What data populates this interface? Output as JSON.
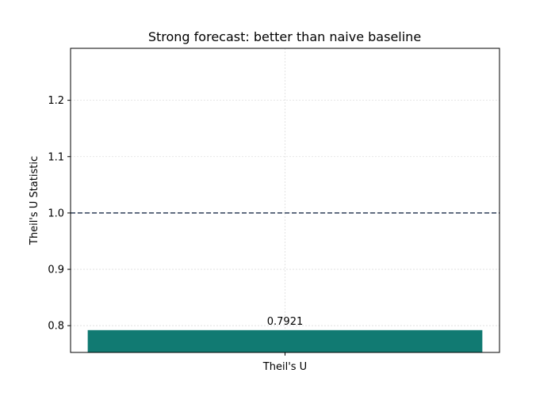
{
  "chart_data": {
    "type": "bar",
    "title": "Strong forecast: better than naive baseline",
    "xlabel": "",
    "ylabel": "Theil's U Statistic",
    "categories": [
      "Theil's U"
    ],
    "values": [
      0.7921
    ],
    "value_labels": [
      "0.7921"
    ],
    "ylim": [
      0.7525,
      1.2922
    ],
    "yticks": [
      0.8,
      0.9,
      1.0,
      1.1,
      1.2
    ],
    "ytick_labels": [
      "0.8",
      "0.9",
      "1.0",
      "1.1",
      "1.2"
    ],
    "reference_line": {
      "y": 1.0,
      "style": "dashed",
      "color": "#2e3f57"
    },
    "grid": true,
    "bar_color": "#117a72",
    "legend": "none"
  }
}
